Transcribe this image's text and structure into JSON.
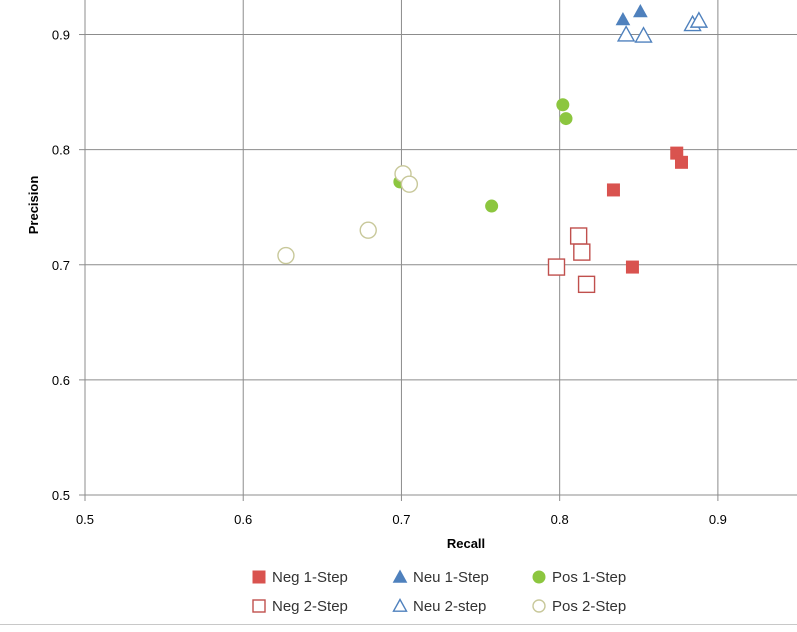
{
  "chart_data": {
    "type": "scatter",
    "title": "",
    "xlabel": "Recall",
    "ylabel": "Precision",
    "xlim": [
      0.5,
      0.95
    ],
    "ylim": [
      0.5,
      0.93
    ],
    "x_ticks": [
      0.5,
      0.6,
      0.7,
      0.8,
      0.9
    ],
    "y_ticks": [
      0.5,
      0.6,
      0.7,
      0.8,
      0.9
    ],
    "x_tick_labels": [
      "0.5",
      "0.6",
      "0.7",
      "0.8",
      "0.9"
    ],
    "y_tick_labels": [
      "0.5",
      "0.6",
      "0.7",
      "0.8",
      "0.9"
    ],
    "grid": true,
    "legend_position": "bottom",
    "series": [
      {
        "name": "Neg 1-Step",
        "marker": "square",
        "filled": true,
        "color": "#d9534f",
        "points": [
          [
            0.834,
            0.765
          ],
          [
            0.874,
            0.797
          ],
          [
            0.877,
            0.789
          ],
          [
            0.846,
            0.698
          ]
        ]
      },
      {
        "name": "Neu 1-Step",
        "marker": "triangle",
        "filled": true,
        "color": "#4f81bd",
        "points": [
          [
            0.84,
            0.913
          ],
          [
            0.851,
            0.92
          ]
        ]
      },
      {
        "name": "Pos 1-Step",
        "marker": "circle",
        "filled": true,
        "color": "#8cc63f",
        "points": [
          [
            0.802,
            0.839
          ],
          [
            0.804,
            0.827
          ],
          [
            0.757,
            0.751
          ],
          [
            0.699,
            0.772
          ]
        ]
      },
      {
        "name": "Neg 2-Step",
        "marker": "square",
        "filled": false,
        "color": "#c0504d",
        "points": [
          [
            0.812,
            0.725
          ],
          [
            0.814,
            0.711
          ],
          [
            0.798,
            0.698
          ],
          [
            0.817,
            0.683
          ]
        ]
      },
      {
        "name": "Neu 2-step",
        "marker": "triangle",
        "filled": false,
        "color": "#4f81bd",
        "points": [
          [
            0.842,
            0.9
          ],
          [
            0.853,
            0.899
          ],
          [
            0.884,
            0.909
          ],
          [
            0.888,
            0.912
          ]
        ]
      },
      {
        "name": "Pos 2-Step",
        "marker": "circle",
        "filled": false,
        "color": "#c8c89a",
        "points": [
          [
            0.627,
            0.708
          ],
          [
            0.679,
            0.73
          ],
          [
            0.701,
            0.779
          ],
          [
            0.705,
            0.77
          ]
        ]
      }
    ]
  }
}
